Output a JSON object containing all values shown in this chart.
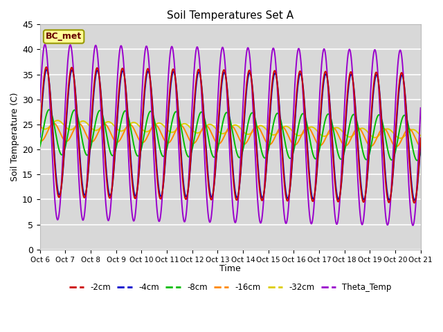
{
  "title": "Soil Temperatures Set A",
  "xlabel": "Time",
  "ylabel": "Soil Temperature (C)",
  "ylim": [
    0,
    45
  ],
  "plot_bg_color": "#d8d8d8",
  "grid_color": "white",
  "colors": {
    "-2cm": "#cc0000",
    "-4cm": "#0000cc",
    "-8cm": "#00bb00",
    "-16cm": "#ff8800",
    "-32cm": "#ddcc00",
    "Theta_Temp": "#9900cc"
  },
  "tick_labels": [
    "Oct 6",
    "Oct 7",
    "Oct 8",
    "Oct 9",
    "Oct 10",
    "Oct 11",
    "Oct 12",
    "Oct 13",
    "Oct 14",
    "Oct 15",
    "Oct 16",
    "Oct 17",
    "Oct 18",
    "Oct 19",
    "Oct 20",
    "Oct 21"
  ],
  "annotation_text": "BC_met",
  "annotation_bg": "#ffff99",
  "annotation_border": "#999900"
}
